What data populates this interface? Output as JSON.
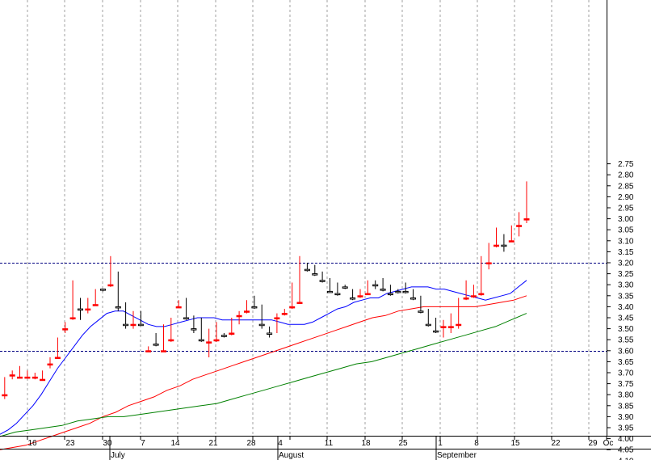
{
  "chart_data": {
    "type": "candlestick",
    "y_axis": {
      "position": "right",
      "range": [
        2.7,
        4.18
      ],
      "ticks": [
        "2.75",
        "2.80",
        "2.85",
        "2.90",
        "2.95",
        "3.00",
        "3.05",
        "3.10",
        "3.15",
        "3.20",
        "3.25",
        "3.30",
        "3.35",
        "3.40",
        "3.45",
        "3.50",
        "3.55",
        "3.60",
        "3.65",
        "3.70",
        "3.75",
        "3.80",
        "3.85",
        "3.90",
        "3.95",
        "4.00",
        "4.05",
        "4.10",
        "4.15"
      ]
    },
    "x_axis": {
      "day_labels": [
        "16",
        "23",
        "30",
        "7",
        "14",
        "21",
        "28",
        "4",
        "11",
        "18",
        "25",
        "1",
        "8",
        "15",
        "22",
        "29",
        "Oc"
      ],
      "month_labels": [
        "July",
        "August",
        "September"
      ]
    },
    "horizontal_levels": [
      3.6,
      3.2
    ],
    "colors": {
      "up": "#ffffff",
      "down": "#ff0000",
      "outline": "#000000",
      "ma_short": "#0000ff",
      "ma_mid": "#ff0000",
      "ma_long": "#008000",
      "level_line": "#000080",
      "grid": "#a0a0a0"
    },
    "candles": [
      {
        "date": "Jun 11",
        "o": 3.8,
        "h": 3.82,
        "l": 3.72,
        "c": 3.72
      },
      {
        "date": "Jun 12",
        "o": 3.71,
        "h": 3.73,
        "l": 3.69,
        "c": 3.7
      },
      {
        "date": "Jun 13",
        "o": 3.72,
        "h": 3.72,
        "l": 3.67,
        "c": 3.7
      },
      {
        "date": "Jun 14",
        "o": 3.72,
        "h": 3.72,
        "l": 3.69,
        "c": 3.7
      },
      {
        "date": "Jun 15",
        "o": 3.72,
        "h": 3.73,
        "l": 3.7,
        "c": 3.7
      },
      {
        "date": "Jun 18",
        "o": 3.73,
        "h": 3.73,
        "l": 3.69,
        "c": 3.7
      },
      {
        "date": "Jun 19",
        "o": 3.66,
        "h": 3.68,
        "l": 3.63,
        "c": 3.64
      },
      {
        "date": "Jun 20",
        "o": 3.63,
        "h": 3.63,
        "l": 3.54,
        "c": 3.55
      },
      {
        "date": "Jun 21",
        "o": 3.5,
        "h": 3.52,
        "l": 3.47,
        "c": 3.48
      },
      {
        "date": "Jun 22",
        "o": 3.45,
        "h": 3.46,
        "l": 3.28,
        "c": 3.38
      },
      {
        "date": "Jun 25",
        "o": 3.37,
        "h": 3.46,
        "l": 3.36,
        "c": 3.41
      },
      {
        "date": "Jun 26",
        "o": 3.41,
        "h": 3.43,
        "l": 3.36,
        "c": 3.37
      },
      {
        "date": "Jun 27",
        "o": 3.39,
        "h": 3.39,
        "l": 3.32,
        "c": 3.32
      },
      {
        "date": "Jun 28",
        "o": 3.32,
        "h": 3.33,
        "l": 3.32,
        "c": 3.32
      },
      {
        "date": "Jun 29",
        "o": 3.3,
        "h": 3.31,
        "l": 3.17,
        "c": 3.25
      },
      {
        "date": "Jul 2",
        "o": 3.24,
        "h": 3.42,
        "l": 3.24,
        "c": 3.4
      },
      {
        "date": "Jul 3",
        "o": 3.4,
        "h": 3.5,
        "l": 3.38,
        "c": 3.48
      },
      {
        "date": "Jul 4",
        "o": 3.48,
        "h": 3.5,
        "l": 3.42,
        "c": 3.43
      },
      {
        "date": "Jul 5",
        "o": 3.43,
        "h": 3.48,
        "l": 3.42,
        "c": 3.48
      },
      {
        "date": "Jul 6",
        "o": 3.6,
        "h": 3.6,
        "l": 3.58,
        "c": 3.59
      },
      {
        "date": "Jul 9",
        "o": 3.52,
        "h": 3.58,
        "l": 3.52,
        "c": 3.57
      },
      {
        "date": "Jul 10",
        "o": 3.6,
        "h": 3.6,
        "l": 3.48,
        "c": 3.49
      },
      {
        "date": "Jul 11",
        "o": 3.55,
        "h": 3.56,
        "l": 3.45,
        "c": 3.46
      },
      {
        "date": "Jul 12",
        "o": 3.4,
        "h": 3.4,
        "l": 3.37,
        "c": 3.38
      },
      {
        "date": "Jul 13",
        "o": 3.38,
        "h": 3.46,
        "l": 3.36,
        "c": 3.45
      },
      {
        "date": "Jul 16",
        "o": 3.45,
        "h": 3.52,
        "l": 3.44,
        "c": 3.5
      },
      {
        "date": "Jul 17",
        "o": 3.52,
        "h": 3.56,
        "l": 3.45,
        "c": 3.55
      },
      {
        "date": "Jul 18",
        "o": 3.56,
        "h": 3.63,
        "l": 3.5,
        "c": 3.55
      },
      {
        "date": "Jul 19",
        "o": 3.55,
        "h": 3.56,
        "l": 3.47,
        "c": 3.49
      },
      {
        "date": "Jul 20",
        "o": 3.53,
        "h": 3.54,
        "l": 3.52,
        "c": 3.53
      },
      {
        "date": "Jul 23",
        "o": 3.52,
        "h": 3.53,
        "l": 3.45,
        "c": 3.45
      },
      {
        "date": "Jul 24",
        "o": 3.44,
        "h": 3.48,
        "l": 3.42,
        "c": 3.42
      },
      {
        "date": "Jul 25",
        "o": 3.42,
        "h": 3.43,
        "l": 3.37,
        "c": 3.38
      },
      {
        "date": "Jul 26",
        "o": 3.36,
        "h": 3.41,
        "l": 3.35,
        "c": 3.4
      },
      {
        "date": "Jul 27",
        "o": 3.4,
        "h": 3.5,
        "l": 3.39,
        "c": 3.48
      },
      {
        "date": "Jul 30",
        "o": 3.52,
        "h": 3.54,
        "l": 3.49,
        "c": 3.52
      },
      {
        "date": "Jul 31",
        "o": 3.45,
        "h": 3.52,
        "l": 3.43,
        "c": 3.43
      },
      {
        "date": "Aug 1",
        "o": 3.43,
        "h": 3.44,
        "l": 3.41,
        "c": 3.41
      },
      {
        "date": "Aug 2",
        "o": 3.4,
        "h": 3.41,
        "l": 3.29,
        "c": 3.3
      },
      {
        "date": "Aug 3",
        "o": 3.38,
        "h": 3.38,
        "l": 3.17,
        "c": 3.21
      },
      {
        "date": "Aug 6",
        "o": 3.21,
        "h": 3.24,
        "l": 3.2,
        "c": 3.23
      },
      {
        "date": "Aug 7",
        "o": 3.22,
        "h": 3.26,
        "l": 3.21,
        "c": 3.25
      },
      {
        "date": "Aug 8",
        "o": 3.27,
        "h": 3.29,
        "l": 3.24,
        "c": 3.28
      },
      {
        "date": "Aug 9",
        "o": 3.28,
        "h": 3.33,
        "l": 3.27,
        "c": 3.33
      },
      {
        "date": "Aug 10",
        "o": 3.31,
        "h": 3.35,
        "l": 3.29,
        "c": 3.34
      },
      {
        "date": "Aug 13",
        "o": 3.31,
        "h": 3.32,
        "l": 3.3,
        "c": 3.31
      },
      {
        "date": "Aug 14",
        "o": 3.32,
        "h": 3.37,
        "l": 3.32,
        "c": 3.36
      },
      {
        "date": "Aug 15",
        "o": 3.35,
        "h": 3.36,
        "l": 3.32,
        "c": 3.34
      },
      {
        "date": "Aug 16",
        "o": 3.34,
        "h": 3.34,
        "l": 3.28,
        "c": 3.29
      },
      {
        "date": "Aug 17",
        "o": 3.29,
        "h": 3.32,
        "l": 3.28,
        "c": 3.3
      },
      {
        "date": "Aug 20",
        "o": 3.28,
        "h": 3.33,
        "l": 3.27,
        "c": 3.32
      },
      {
        "date": "Aug 21",
        "o": 3.31,
        "h": 3.35,
        "l": 3.3,
        "c": 3.34
      },
      {
        "date": "Aug 22",
        "o": 3.33,
        "h": 3.34,
        "l": 3.32,
        "c": 3.33
      },
      {
        "date": "Aug 23",
        "o": 3.3,
        "h": 3.34,
        "l": 3.29,
        "c": 3.33
      },
      {
        "date": "Aug 24",
        "o": 3.33,
        "h": 3.37,
        "l": 3.32,
        "c": 3.36
      },
      {
        "date": "Aug 27",
        "o": 3.36,
        "h": 3.43,
        "l": 3.35,
        "c": 3.42
      },
      {
        "date": "Aug 28",
        "o": 3.42,
        "h": 3.49,
        "l": 3.41,
        "c": 3.48
      },
      {
        "date": "Aug 29",
        "o": 3.46,
        "h": 3.52,
        "l": 3.45,
        "c": 3.51
      },
      {
        "date": "Aug 30",
        "o": 3.49,
        "h": 3.54,
        "l": 3.46,
        "c": 3.47
      },
      {
        "date": "Aug 31",
        "o": 3.49,
        "h": 3.52,
        "l": 3.43,
        "c": 3.46
      },
      {
        "date": "Sep 3",
        "o": 3.48,
        "h": 3.5,
        "l": 3.36,
        "c": 3.38
      },
      {
        "date": "Sep 4",
        "o": 3.36,
        "h": 3.37,
        "l": 3.28,
        "c": 3.3
      },
      {
        "date": "Sep 5",
        "o": 3.35,
        "h": 3.36,
        "l": 3.3,
        "c": 3.32
      },
      {
        "date": "Sep 6",
        "o": 3.34,
        "h": 3.35,
        "l": 3.17,
        "c": 3.2
      },
      {
        "date": "Sep 7",
        "o": 3.2,
        "h": 3.23,
        "l": 3.11,
        "c": 3.12
      },
      {
        "date": "Sep 10",
        "o": 3.12,
        "h": 3.13,
        "l": 3.04,
        "c": 3.06
      },
      {
        "date": "Sep 11",
        "o": 3.09,
        "h": 3.15,
        "l": 3.07,
        "c": 3.12
      },
      {
        "date": "Sep 12",
        "o": 3.1,
        "h": 3.1,
        "l": 3.03,
        "c": 3.04
      },
      {
        "date": "Sep 13",
        "o": 3.03,
        "h": 3.08,
        "l": 2.97,
        "c": 2.98
      },
      {
        "date": "Sep 14",
        "o": 3.0,
        "h": 3.02,
        "l": 2.83,
        "c": 2.83
      }
    ],
    "ma_short": [
      3.98,
      3.96,
      3.93,
      3.89,
      3.85,
      3.8,
      3.74,
      3.68,
      3.63,
      3.58,
      3.53,
      3.49,
      3.46,
      3.43,
      3.42,
      3.42,
      3.44,
      3.46,
      3.48,
      3.49,
      3.49,
      3.48,
      3.47,
      3.46,
      3.45,
      3.45,
      3.45,
      3.46,
      3.46,
      3.46,
      3.46,
      3.46,
      3.46,
      3.46,
      3.47,
      3.48,
      3.48,
      3.48,
      3.47,
      3.45,
      3.43,
      3.41,
      3.4,
      3.38,
      3.37,
      3.36,
      3.36,
      3.34,
      3.33,
      3.32,
      3.31,
      3.31,
      3.31,
      3.32,
      3.32,
      3.33,
      3.34,
      3.35,
      3.36,
      3.37,
      3.36,
      3.35,
      3.34,
      3.31,
      3.28
    ],
    "ma_mid": [
      4.05,
      4.04,
      4.03,
      4.01,
      3.99,
      3.97,
      3.95,
      3.93,
      3.9,
      3.88,
      3.85,
      3.83,
      3.81,
      3.78,
      3.76,
      3.73,
      3.71,
      3.69,
      3.67,
      3.65,
      3.63,
      3.61,
      3.59,
      3.57,
      3.55,
      3.53,
      3.51,
      3.49,
      3.47,
      3.45,
      3.44,
      3.42,
      3.41,
      3.4,
      3.4,
      3.4,
      3.4,
      3.4,
      3.39,
      3.38,
      3.37,
      3.35
    ],
    "ma_long": [
      3.99,
      3.97,
      3.96,
      3.95,
      3.94,
      3.92,
      3.91,
      3.9,
      3.9,
      3.89,
      3.88,
      3.87,
      3.86,
      3.85,
      3.84,
      3.82,
      3.8,
      3.78,
      3.76,
      3.74,
      3.72,
      3.7,
      3.68,
      3.66,
      3.65,
      3.63,
      3.61,
      3.59,
      3.57,
      3.55,
      3.53,
      3.51,
      3.49,
      3.46,
      3.43
    ]
  }
}
